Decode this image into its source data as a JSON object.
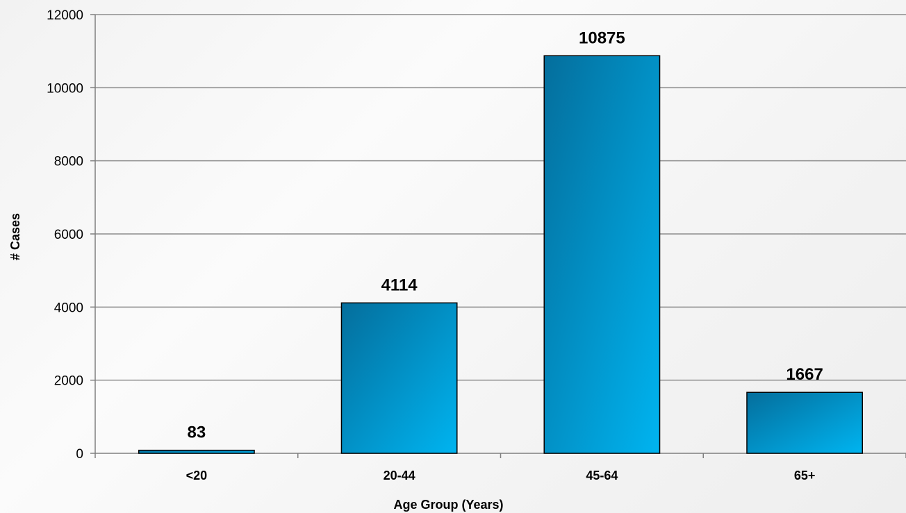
{
  "chart_data": {
    "type": "bar",
    "title": "",
    "xlabel": "Age Group (Years)",
    "ylabel": "# Cases",
    "categories": [
      "<20",
      "20-44",
      "45-64",
      "65+"
    ],
    "values": [
      83,
      4114,
      10875,
      1667
    ],
    "data_labels": [
      "83",
      "4114",
      "10875",
      "1667"
    ],
    "ylim": [
      0,
      12000
    ],
    "y_ticks": [
      0,
      2000,
      4000,
      6000,
      8000,
      10000,
      12000
    ],
    "y_tick_labels": [
      "0",
      "2000",
      "4000",
      "6000",
      "8000",
      "10000",
      "12000"
    ],
    "grid": true,
    "legend": "none",
    "colors": {
      "bar_light": "#00b4f0",
      "bar_dark": "#046e9c",
      "bar_border": "#000000",
      "grid": "#8c8c8c",
      "axis": "#7f7f7f"
    }
  }
}
